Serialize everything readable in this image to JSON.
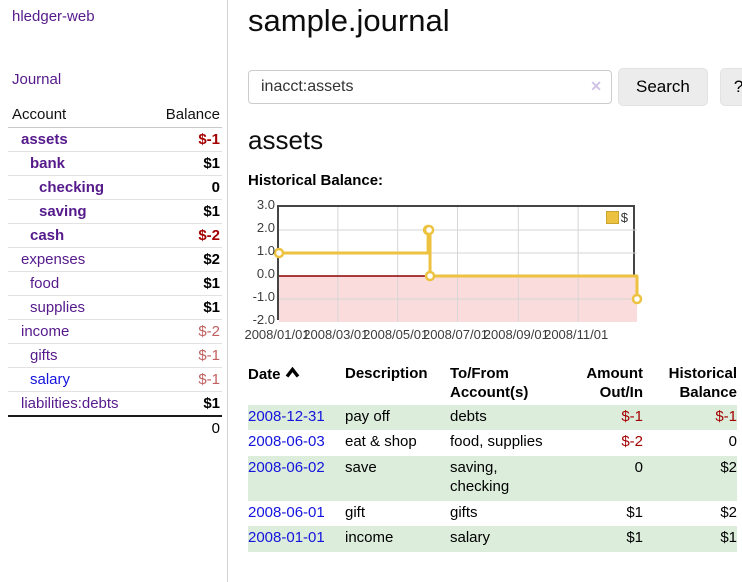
{
  "app": {
    "brand": "hledger-web",
    "nav_journal": "Journal"
  },
  "colors": {
    "link_purple": "#551a8b",
    "link_blue": "#1414dd",
    "negative": "#a40000",
    "negative_faded": "#c06060",
    "row_stripe": "#dceddc",
    "chart_line": "#edc240"
  },
  "sidebar": {
    "header": {
      "account": "Account",
      "balance": "Balance"
    },
    "accounts": [
      {
        "name": "assets",
        "indent": 1,
        "bold": true,
        "balance": "$-1",
        "style": "neg"
      },
      {
        "name": "bank",
        "indent": 2,
        "bold": true,
        "balance": "$1",
        "style": ""
      },
      {
        "name": "checking",
        "indent": 3,
        "bold": true,
        "balance": "0",
        "style": ""
      },
      {
        "name": "saving",
        "indent": 3,
        "bold": true,
        "balance": "$1",
        "style": ""
      },
      {
        "name": "cash",
        "indent": 2,
        "bold": true,
        "balance": "$-2",
        "style": "neg"
      },
      {
        "name": "expenses",
        "indent": 1,
        "bold": false,
        "balance": "$2",
        "style": ""
      },
      {
        "name": "food",
        "indent": 2,
        "bold": false,
        "balance": "$1",
        "style": ""
      },
      {
        "name": "supplies",
        "indent": 2,
        "bold": false,
        "balance": "$1",
        "style": ""
      },
      {
        "name": "income",
        "indent": 1,
        "bold": false,
        "balance": "$-2",
        "style": "fneg"
      },
      {
        "name": "gifts",
        "indent": 2,
        "bold": false,
        "balance": "$-1",
        "style": "fneg"
      },
      {
        "name": "salary",
        "indent": 2,
        "bold": false,
        "blue": true,
        "balance": "$-1",
        "style": "fneg"
      },
      {
        "name": "liabilities:debts",
        "indent": 1,
        "bold": false,
        "balance": "$1",
        "style": ""
      }
    ],
    "total": "0"
  },
  "header": {
    "title": "sample.journal"
  },
  "search": {
    "value": "inacct:assets",
    "clear_icon": "✕",
    "button_label": "Search",
    "help_label": "?"
  },
  "account_page": {
    "title": "assets",
    "chart_label": "Historical Balance:"
  },
  "chart_data": {
    "type": "line",
    "steps": true,
    "title": "Historical Balance:",
    "legend": "$",
    "legend_position": "top-right",
    "grid": true,
    "series": [
      {
        "name": "$",
        "color": "#edc240",
        "points": [
          [
            "2008-01-01",
            1
          ],
          [
            "2008-06-01",
            2
          ],
          [
            "2008-06-02",
            2
          ],
          [
            "2008-06-03",
            0
          ],
          [
            "2008-12-31",
            -1
          ]
        ]
      }
    ],
    "x_ticks": [
      "2008/01/01",
      "2008/03/01",
      "2008/05/01",
      "2008/07/01",
      "2008/09/01",
      "2008/11/01"
    ],
    "y_ticks": [
      3.0,
      2.0,
      1.0,
      0.0,
      -1.0,
      -2.0
    ],
    "xlim": [
      "2008-01-01",
      "2008-12-31"
    ],
    "ylim": [
      -2,
      3
    ],
    "negative_region_color": "#fbdcdc",
    "zero_line_color": "#8b0000"
  },
  "register": {
    "columns": [
      {
        "l1": "Date",
        "l2": ""
      },
      {
        "l1": "Description",
        "l2": ""
      },
      {
        "l1": "To/From",
        "l2": "Account(s)"
      },
      {
        "l1": "Amount",
        "l2": "Out/In"
      },
      {
        "l1": "Historical",
        "l2": "Balance"
      }
    ],
    "rows": [
      {
        "date": "2008-12-31",
        "description": "pay off",
        "accounts": "debts",
        "amount": "$-1",
        "balance": "$-1",
        "amount_neg": true,
        "balance_neg": true
      },
      {
        "date": "2008-06-03",
        "description": "eat & shop",
        "accounts": "food, supplies",
        "amount": "$-2",
        "balance": "0",
        "amount_neg": true,
        "balance_neg": false
      },
      {
        "date": "2008-06-02",
        "description": "save",
        "accounts": "saving, checking",
        "amount": "0",
        "balance": "$2",
        "amount_neg": false,
        "balance_neg": false
      },
      {
        "date": "2008-06-01",
        "description": "gift",
        "accounts": "gifts",
        "amount": "$1",
        "balance": "$2",
        "amount_neg": false,
        "balance_neg": false
      },
      {
        "date": "2008-01-01",
        "description": "income",
        "accounts": "salary",
        "amount": "$1",
        "balance": "$1",
        "amount_neg": false,
        "balance_neg": false
      }
    ]
  }
}
